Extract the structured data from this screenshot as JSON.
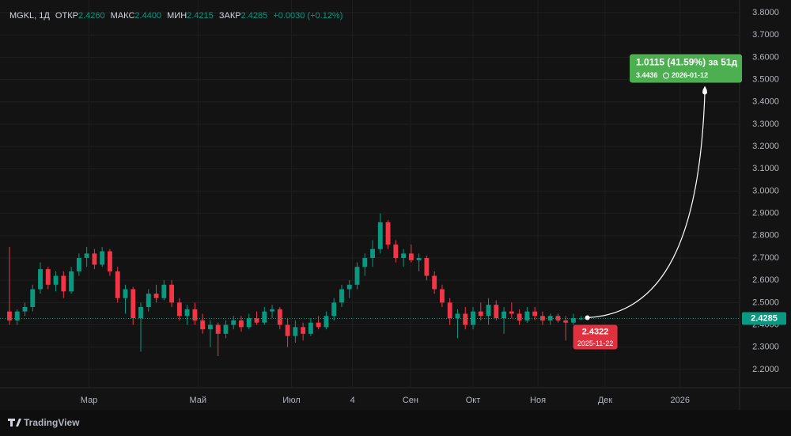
{
  "chart_data": {
    "type": "candlestick",
    "header": {
      "symbol": "MGKL, 1Д",
      "open_label": "ОТКР",
      "open": "2.4260",
      "high_label": "МАКС",
      "high": "2.4400",
      "low_label": "МИН",
      "low": "2.4215",
      "close_label": "ЗАКР",
      "close": "2.4285",
      "change": "+0.0030 (+0.12%)"
    },
    "up_color": "#089981",
    "down_color": "#f23645",
    "open": [
      2.46,
      2.42,
      2.46,
      2.48,
      2.56,
      2.65,
      2.58,
      2.62,
      2.55,
      2.64,
      2.7,
      2.72,
      2.67,
      2.73,
      2.64,
      2.52,
      2.56,
      2.43,
      2.48,
      2.54,
      2.52,
      2.58,
      2.5,
      2.44,
      2.47,
      2.42,
      2.38,
      2.4,
      2.36,
      2.4,
      2.42,
      2.39,
      2.43,
      2.41,
      2.46,
      2.47,
      2.4,
      2.35,
      2.39,
      2.36,
      2.41,
      2.39,
      2.44,
      2.5,
      2.56,
      2.58,
      2.66,
      2.7,
      2.74,
      2.86,
      2.76,
      2.7,
      2.72,
      2.69,
      2.7,
      2.62,
      2.56,
      2.5,
      2.43,
      2.45,
      2.4,
      2.46,
      2.44,
      2.49,
      2.43,
      2.46,
      2.45,
      2.42,
      2.46,
      2.44,
      2.42,
      2.44,
      2.42,
      2.41,
      2.426
    ],
    "high": [
      2.75,
      2.47,
      2.5,
      2.58,
      2.68,
      2.66,
      2.64,
      2.64,
      2.66,
      2.72,
      2.75,
      2.74,
      2.75,
      2.74,
      2.66,
      2.58,
      2.57,
      2.5,
      2.56,
      2.58,
      2.6,
      2.6,
      2.52,
      2.49,
      2.5,
      2.45,
      2.42,
      2.41,
      2.42,
      2.44,
      2.44,
      2.45,
      2.46,
      2.48,
      2.49,
      2.48,
      2.43,
      2.42,
      2.41,
      2.43,
      2.44,
      2.46,
      2.52,
      2.58,
      2.6,
      2.68,
      2.72,
      2.78,
      2.9,
      2.87,
      2.78,
      2.74,
      2.76,
      2.72,
      2.71,
      2.64,
      2.58,
      2.52,
      2.47,
      2.48,
      2.48,
      2.5,
      2.52,
      2.51,
      2.48,
      2.5,
      2.47,
      2.48,
      2.48,
      2.46,
      2.45,
      2.45,
      2.44,
      2.45,
      2.44
    ],
    "low": [
      2.4,
      2.4,
      2.44,
      2.46,
      2.54,
      2.56,
      2.55,
      2.52,
      2.54,
      2.62,
      2.66,
      2.65,
      2.66,
      2.62,
      2.5,
      2.45,
      2.4,
      2.28,
      2.46,
      2.5,
      2.51,
      2.48,
      2.42,
      2.4,
      2.4,
      2.36,
      2.3,
      2.26,
      2.34,
      2.38,
      2.37,
      2.38,
      2.4,
      2.4,
      2.43,
      2.38,
      2.3,
      2.32,
      2.33,
      2.35,
      2.38,
      2.38,
      2.42,
      2.48,
      2.52,
      2.56,
      2.62,
      2.66,
      2.72,
      2.74,
      2.68,
      2.66,
      2.68,
      2.64,
      2.6,
      2.54,
      2.48,
      2.4,
      2.34,
      2.38,
      2.38,
      2.42,
      2.4,
      2.42,
      2.36,
      2.43,
      2.4,
      2.41,
      2.42,
      2.4,
      2.4,
      2.41,
      2.33,
      2.4,
      2.4215
    ],
    "close": [
      2.42,
      2.46,
      2.48,
      2.56,
      2.65,
      2.58,
      2.62,
      2.55,
      2.64,
      2.7,
      2.72,
      2.67,
      2.73,
      2.64,
      2.52,
      2.56,
      2.43,
      2.48,
      2.54,
      2.52,
      2.58,
      2.5,
      2.44,
      2.47,
      2.42,
      2.38,
      2.4,
      2.36,
      2.4,
      2.42,
      2.39,
      2.43,
      2.41,
      2.46,
      2.47,
      2.4,
      2.35,
      2.39,
      2.36,
      2.41,
      2.39,
      2.44,
      2.5,
      2.56,
      2.58,
      2.66,
      2.7,
      2.74,
      2.86,
      2.76,
      2.7,
      2.72,
      2.69,
      2.7,
      2.62,
      2.56,
      2.5,
      2.43,
      2.45,
      2.4,
      2.46,
      2.44,
      2.49,
      2.43,
      2.46,
      2.45,
      2.42,
      2.46,
      2.44,
      2.42,
      2.44,
      2.42,
      2.41,
      2.43,
      2.4285
    ],
    "xlim": [
      -0.2,
      94.5
    ],
    "xticks": [
      {
        "value": 10.3,
        "label": "Мар"
      },
      {
        "value": 24.4,
        "label": "Май"
      },
      {
        "value": 36.5,
        "label": "Июл"
      },
      {
        "value": 44.4,
        "label": "4"
      },
      {
        "value": 51.9,
        "label": "Сен"
      },
      {
        "value": 60.0,
        "label": "Окт"
      },
      {
        "value": 68.4,
        "label": "Ноя"
      },
      {
        "value": 77.1,
        "label": "Дек"
      },
      {
        "value": 86.8,
        "label": "2026"
      }
    ],
    "ylim": [
      2.118,
      3.857
    ],
    "yticks": [
      {
        "value": 2.2,
        "label": "2.2000"
      },
      {
        "value": 2.3,
        "label": "2.3000"
      },
      {
        "value": 2.4,
        "label": "2.4000"
      },
      {
        "value": 2.5,
        "label": "2.5000"
      },
      {
        "value": 2.6,
        "label": "2.6000"
      },
      {
        "value": 2.7,
        "label": "2.7000"
      },
      {
        "value": 2.8,
        "label": "2.8000"
      },
      {
        "value": 2.9,
        "label": "2.9000"
      },
      {
        "value": 3.0,
        "label": "3.0000"
      },
      {
        "value": 3.1,
        "label": "3.1000"
      },
      {
        "value": 3.2,
        "label": "3.2000"
      },
      {
        "value": 3.3,
        "label": "3.3000"
      },
      {
        "value": 3.4,
        "label": "3.4000"
      },
      {
        "value": 3.5,
        "label": "3.5000"
      },
      {
        "value": 3.6,
        "label": "3.6000"
      },
      {
        "value": 3.7,
        "label": "3.7000"
      },
      {
        "value": 3.8,
        "label": "3.8000"
      }
    ],
    "last_price": {
      "value": 2.4285,
      "label": "2.4285"
    },
    "projection": {
      "text": "1.0115 (41.59%) за 51д",
      "from": {
        "x": 74.8,
        "value": 2.4322,
        "label": "2.4322",
        "date": "2025-11-22"
      },
      "to": {
        "x": 90.0,
        "value": 3.4436,
        "label": "3.4436",
        "date": "2026-01-12"
      }
    },
    "branding": "TradingView"
  }
}
